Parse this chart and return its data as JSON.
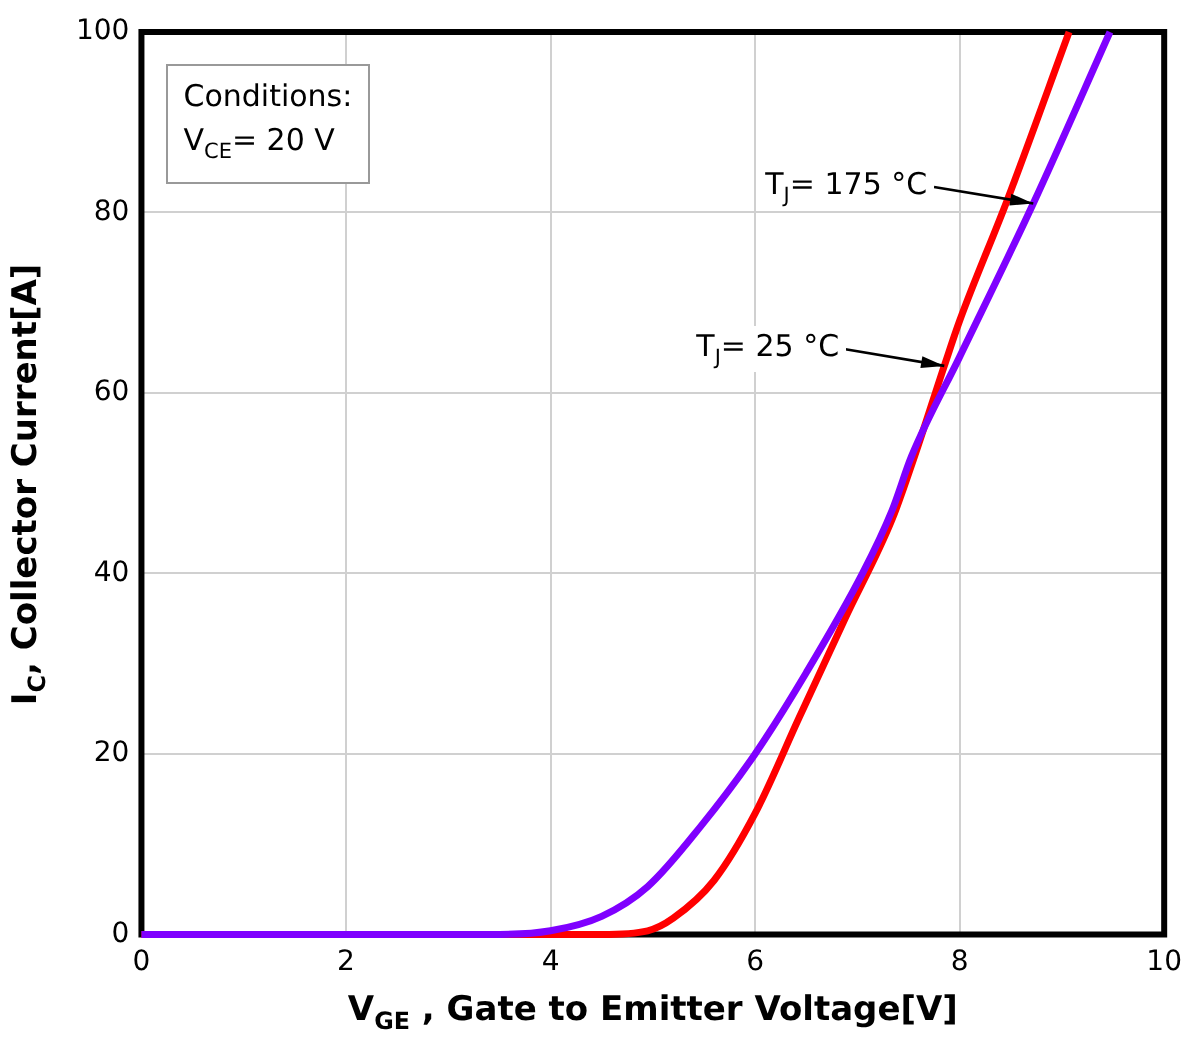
{
  "chart_data": {
    "type": "line",
    "xlabel": "V$_{GE}$ , Gate to Emitter Voltage[V]",
    "ylabel": "I$_{C}$, Collector Current[A]",
    "xlim": [
      0,
      10
    ],
    "xticks": [
      0,
      2,
      4,
      6,
      8,
      10
    ],
    "ylim": [
      0,
      100
    ],
    "yticks": [
      0,
      20,
      40,
      60,
      80,
      100
    ],
    "grid": true,
    "legend": false,
    "marker": "none",
    "line_style": "solid",
    "series": [
      {
        "color": "#7f00ff",
        "x": [
          0,
          3.5,
          4.0,
          4.5,
          4.95,
          5.47,
          6.0,
          6.5,
          7.05,
          7.34,
          7.53,
          8.0,
          8.72,
          9.47
        ],
        "values": [
          0,
          0,
          0.4,
          2,
          5.3,
          12,
          20,
          29,
          40,
          47,
          53,
          64,
          81,
          100
        ]
      },
      {
        "color": "#ff0000",
        "x": [
          0,
          4.5,
          4.95,
          5.2,
          5.6,
          6.0,
          6.43,
          6.88,
          7.34,
          7.56,
          7.85,
          8.0,
          8.47,
          9.07
        ],
        "values": [
          0,
          0,
          0.4,
          1.8,
          6,
          13.4,
          24,
          35,
          46,
          53,
          63,
          68,
          81.5,
          100
        ]
      }
    ],
    "annotations": [
      "Conditions:",
      "V$_{CE}$= 20 V",
      {
        "text": "T$_{J}$= 175 °C",
        "x": 8.72,
        "y": 81
      },
      {
        "text": "T$_{J}$= 25 °C",
        "x": 7.85,
        "y": 63
      }
    ]
  }
}
